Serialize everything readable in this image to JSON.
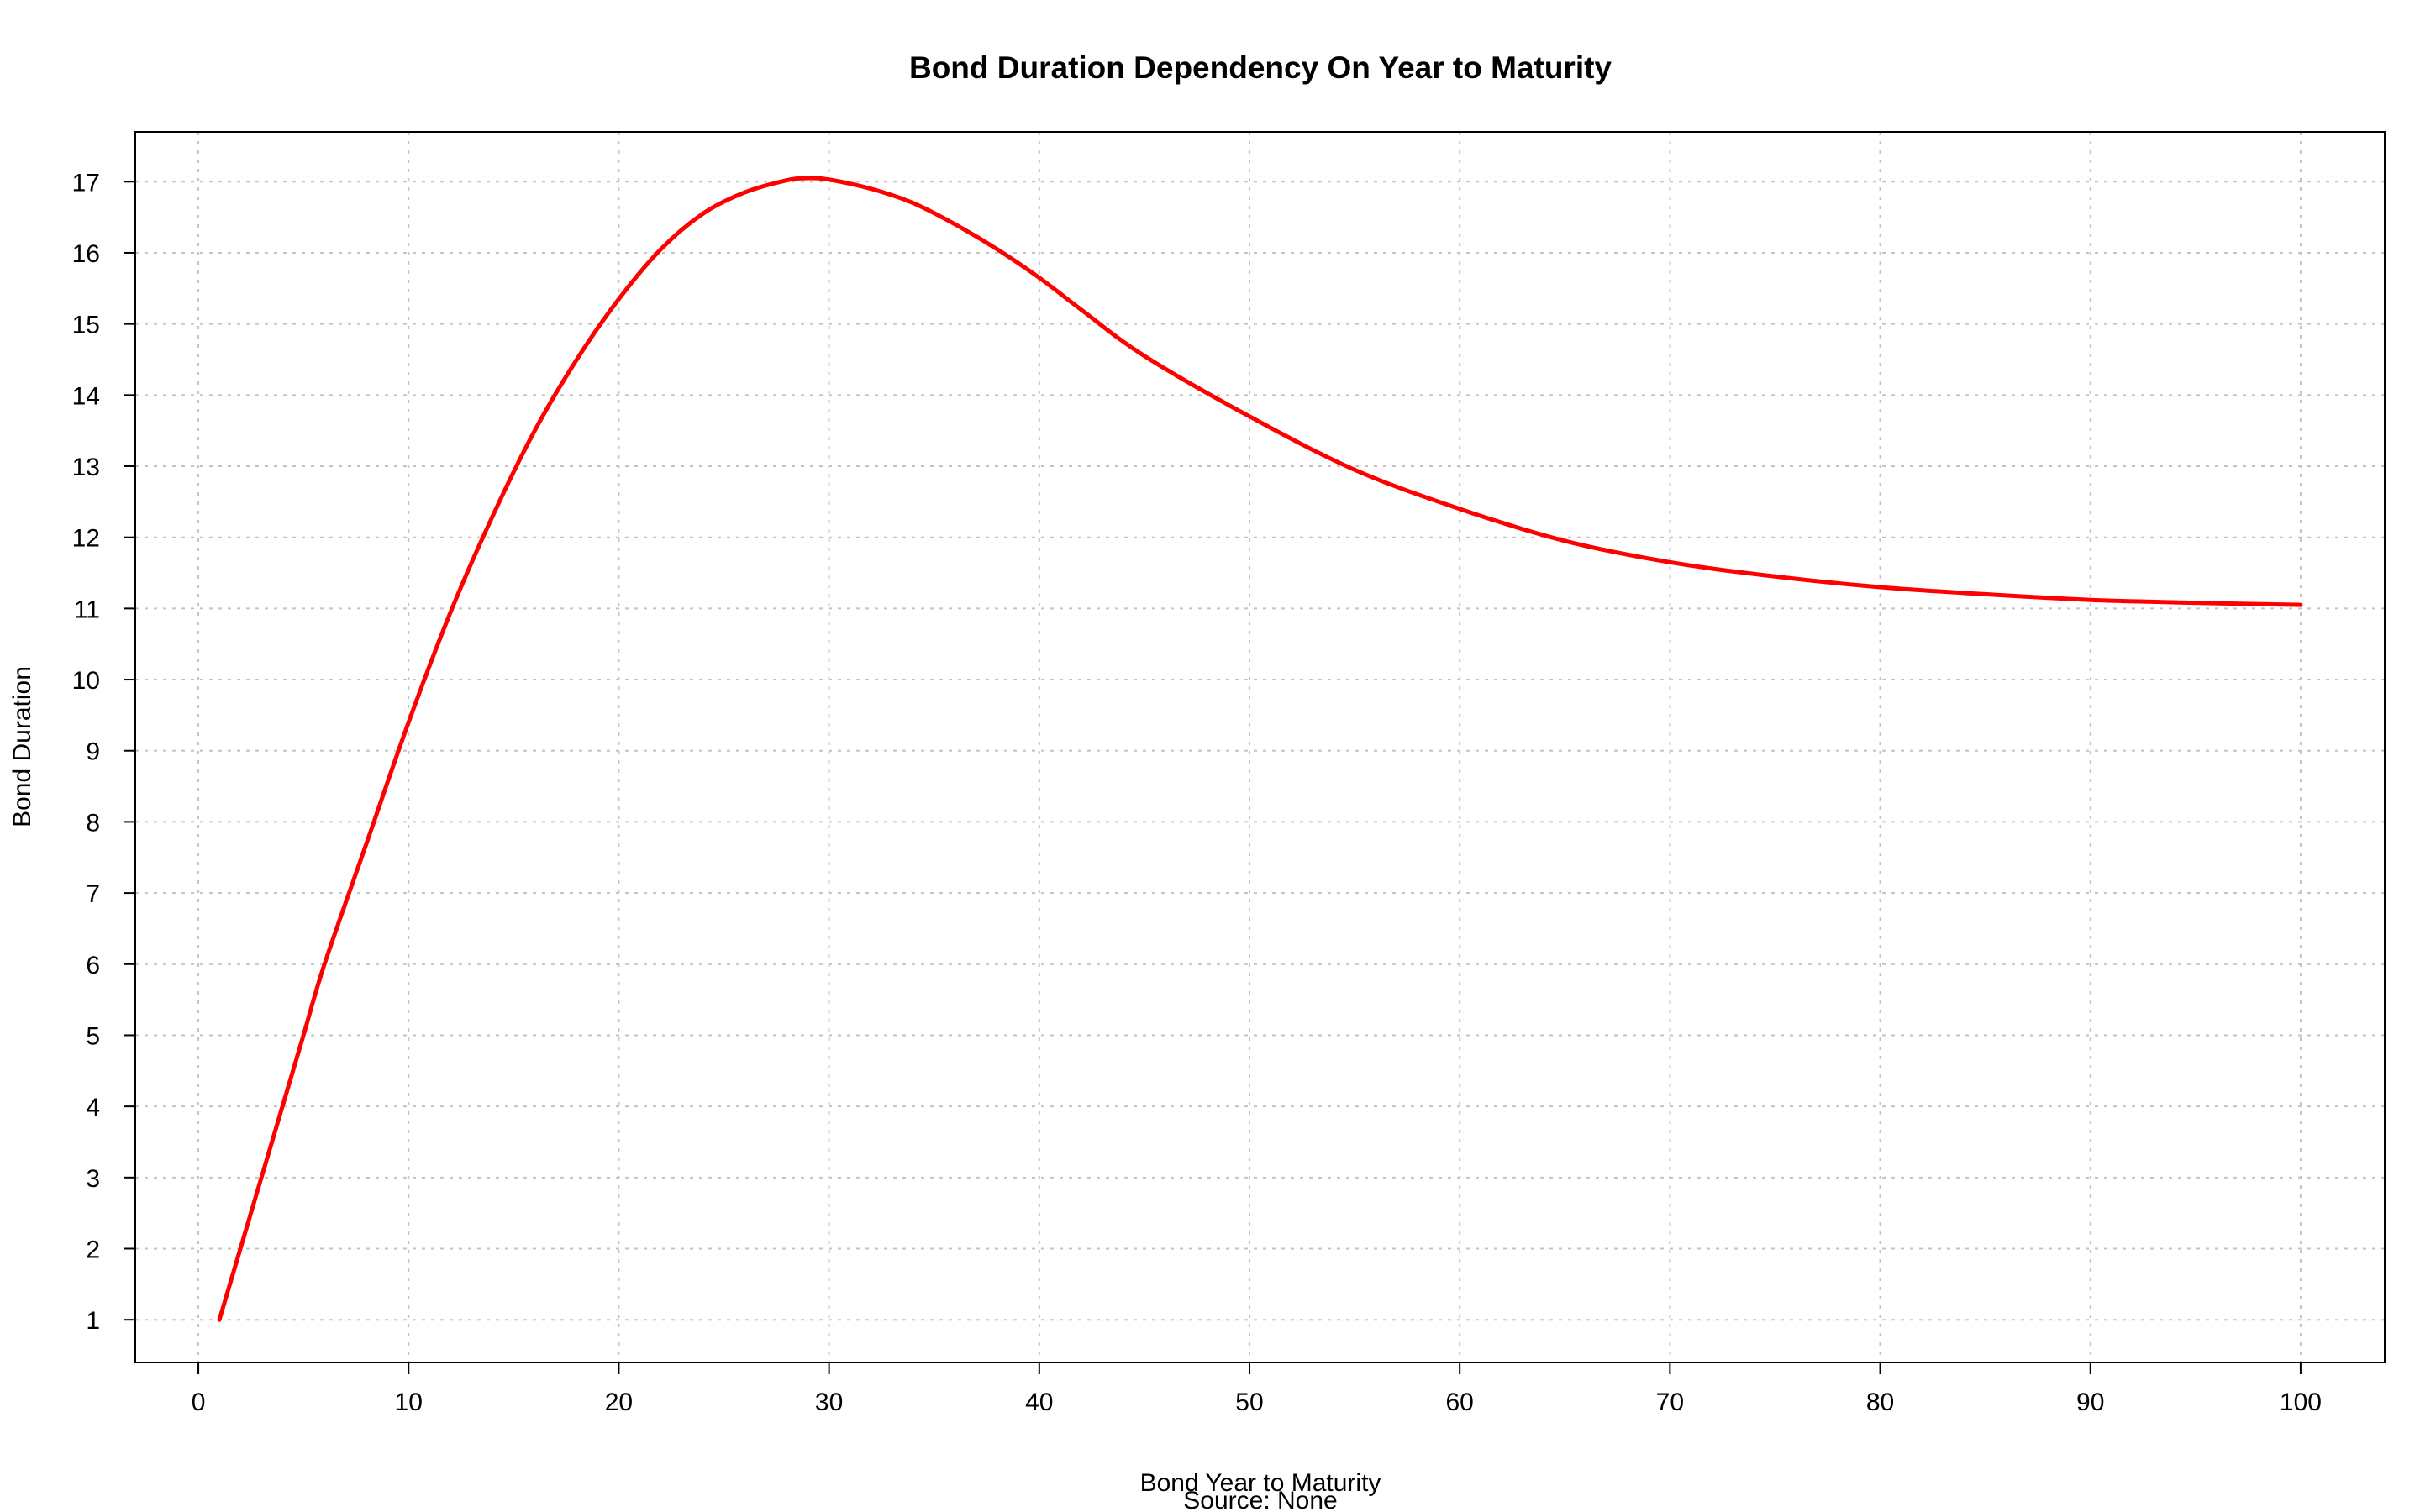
{
  "chart_data": {
    "type": "line",
    "title": "Bond Duration Dependency On Year to Maturity",
    "xlabel": "Bond Year to Maturity",
    "caption": "Source: None",
    "ylabel": "Bond Duration",
    "xlim": [
      -3,
      104
    ],
    "ylim": [
      0.4,
      17.7
    ],
    "xticks": [
      0,
      10,
      20,
      30,
      40,
      50,
      60,
      70,
      80,
      90,
      100
    ],
    "yticks": [
      1,
      2,
      3,
      4,
      5,
      6,
      7,
      8,
      9,
      10,
      11,
      12,
      13,
      14,
      15,
      16,
      17
    ],
    "grid": true,
    "series": [
      {
        "color": "#ff0000",
        "x": [
          1,
          2,
          3,
          4,
          5,
          6,
          8,
          10,
          12,
          14,
          16,
          18,
          20,
          22,
          24,
          26,
          28,
          29,
          30,
          32,
          34,
          36,
          38,
          40,
          42,
          45,
          50,
          55,
          60,
          65,
          70,
          75,
          80,
          85,
          90,
          95,
          100
        ],
        "y": [
          1.0,
          2.0,
          3.0,
          4.0,
          5.0,
          6.0,
          7.7,
          9.4,
          10.95,
          12.3,
          13.5,
          14.5,
          15.35,
          16.05,
          16.55,
          16.85,
          17.02,
          17.05,
          17.03,
          16.9,
          16.7,
          16.4,
          16.05,
          15.65,
          15.2,
          14.55,
          13.7,
          12.95,
          12.4,
          11.95,
          11.65,
          11.45,
          11.3,
          11.2,
          11.12,
          11.08,
          11.05
        ]
      }
    ]
  }
}
